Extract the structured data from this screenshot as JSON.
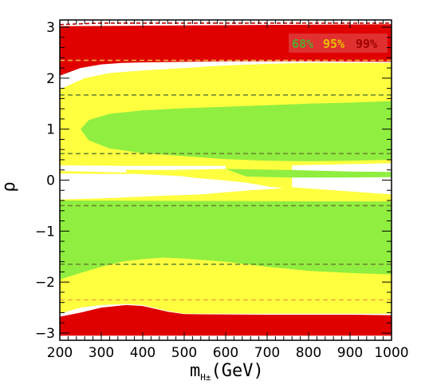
{
  "chart_data": {
    "type": "area",
    "xlabel": "m",
    "xlabel_subscript": "H±",
    "xlabel_unit": "(GeV)",
    "ylabel": "ρ",
    "xlim": [
      200,
      1000
    ],
    "ylim": [
      -3.14159,
      3.14159
    ],
    "xticks": [
      200,
      300,
      400,
      500,
      600,
      700,
      800,
      900,
      1000
    ],
    "yticks": [
      -3,
      -2,
      -1,
      0,
      1,
      2,
      3
    ],
    "legend": [
      {
        "label": "68%",
        "color": "#55a832"
      },
      {
        "label": "95%",
        "color": "#e8c000"
      },
      {
        "label": "99%",
        "color": "#a00000"
      }
    ],
    "legend_background": "#e03030",
    "colors": {
      "red": "#e00000",
      "yellow": "#ffff40",
      "green": "#90ee40",
      "white": "#ffffff",
      "dashed_green": "#6a8a30",
      "dashed_orange": "#f0b040",
      "dashed_red": "#c00000"
    },
    "regions": [
      {
        "level": "99%",
        "color": "red",
        "polygon": [
          [
            200,
            2.05
          ],
          [
            250,
            2.2
          ],
          [
            300,
            2.27
          ],
          [
            350,
            2.3
          ],
          [
            400,
            2.31
          ],
          [
            500,
            2.32
          ],
          [
            600,
            2.33
          ],
          [
            800,
            2.33
          ],
          [
            1000,
            2.32
          ],
          [
            1000,
            3.06
          ],
          [
            200,
            3.02
          ]
        ]
      },
      {
        "level": "99%",
        "color": "red",
        "polygon": [
          [
            200,
            -3.05
          ],
          [
            1000,
            -3.05
          ],
          [
            1000,
            -2.65
          ],
          [
            900,
            -2.64
          ],
          [
            700,
            -2.64
          ],
          [
            500,
            -2.63
          ],
          [
            460,
            -2.58
          ],
          [
            400,
            -2.47
          ],
          [
            360,
            -2.45
          ],
          [
            300,
            -2.5
          ],
          [
            250,
            -2.6
          ],
          [
            200,
            -2.68
          ]
        ]
      },
      {
        "level": "95%",
        "color": "yellow",
        "polygon": [
          [
            200,
            1.78
          ],
          [
            260,
            2.0
          ],
          [
            320,
            2.1
          ],
          [
            400,
            2.15
          ],
          [
            500,
            2.2
          ],
          [
            600,
            2.25
          ],
          [
            700,
            2.28
          ],
          [
            800,
            2.3
          ],
          [
            1000,
            2.3
          ],
          [
            1000,
            0.33
          ],
          [
            760,
            0.29
          ],
          [
            760,
            -0.14
          ],
          [
            1000,
            -0.28
          ],
          [
            1000,
            -2.62
          ],
          [
            500,
            -2.62
          ],
          [
            450,
            -2.55
          ],
          [
            400,
            -2.45
          ],
          [
            360,
            -2.43
          ],
          [
            300,
            -2.45
          ],
          [
            250,
            -2.5
          ],
          [
            200,
            -2.62
          ],
          [
            200,
            -0.38
          ],
          [
            330,
            -0.35
          ],
          [
            440,
            -0.31
          ],
          [
            540,
            -0.28
          ],
          [
            600,
            -0.24
          ],
          [
            660,
            -0.2
          ],
          [
            700,
            -0.18
          ],
          [
            740,
            -0.16
          ],
          [
            700,
            -0.12
          ],
          [
            650,
            -0.05
          ],
          [
            590,
            0.0
          ],
          [
            530,
            0.04
          ],
          [
            490,
            0.08
          ],
          [
            440,
            0.1
          ],
          [
            380,
            0.12
          ],
          [
            300,
            0.12
          ],
          [
            200,
            0.13
          ],
          [
            200,
            0.18
          ],
          [
            300,
            0.17
          ],
          [
            360,
            0.15
          ],
          [
            360,
            0.28
          ],
          [
            200,
            0.29
          ]
        ]
      },
      {
        "level": "68%",
        "color": "green",
        "polygon": [
          [
            250,
            1.0
          ],
          [
            270,
            1.18
          ],
          [
            320,
            1.3
          ],
          [
            400,
            1.37
          ],
          [
            500,
            1.41
          ],
          [
            600,
            1.44
          ],
          [
            700,
            1.47
          ],
          [
            800,
            1.5
          ],
          [
            900,
            1.52
          ],
          [
            1000,
            1.55
          ],
          [
            1000,
            0.4
          ],
          [
            900,
            0.38
          ],
          [
            800,
            0.37
          ],
          [
            700,
            0.38
          ],
          [
            600,
            0.41
          ],
          [
            500,
            0.47
          ],
          [
            400,
            0.53
          ],
          [
            320,
            0.62
          ],
          [
            270,
            0.78
          ]
        ]
      },
      {
        "level": "68%",
        "color": "green",
        "polygon": [
          [
            600,
            0.22
          ],
          [
            750,
            0.2
          ],
          [
            900,
            0.17
          ],
          [
            1000,
            0.16
          ],
          [
            1000,
            0.06
          ],
          [
            900,
            0.05
          ],
          [
            750,
            0.05
          ],
          [
            650,
            0.07
          ]
        ]
      },
      {
        "level": "68%",
        "color": "green",
        "polygon": [
          [
            200,
            -0.4
          ],
          [
            1000,
            -0.42
          ],
          [
            1000,
            -1.85
          ],
          [
            900,
            -1.82
          ],
          [
            800,
            -1.78
          ],
          [
            700,
            -1.7
          ],
          [
            600,
            -1.6
          ],
          [
            500,
            -1.54
          ],
          [
            450,
            -1.52
          ],
          [
            400,
            -1.55
          ],
          [
            350,
            -1.6
          ],
          [
            300,
            -1.7
          ],
          [
            250,
            -1.82
          ],
          [
            200,
            -1.95
          ]
        ]
      },
      {
        "level": "excluded",
        "color": "white",
        "polygon": [
          [
            200,
            -0.22
          ],
          [
            290,
            -0.19
          ],
          [
            400,
            -0.15
          ],
          [
            480,
            -0.1
          ],
          [
            530,
            -0.05
          ],
          [
            560,
            -0.01
          ],
          [
            540,
            0.02
          ],
          [
            490,
            0.03
          ],
          [
            400,
            0.04
          ],
          [
            300,
            0.04
          ],
          [
            220,
            0.03
          ],
          [
            200,
            0.02
          ]
        ]
      },
      {
        "level": "excluded",
        "color": "white",
        "polygon": [
          [
            200,
            0.22
          ],
          [
            330,
            0.21
          ],
          [
            400,
            0.2
          ],
          [
            470,
            0.2
          ],
          [
            540,
            0.21
          ],
          [
            600,
            0.22
          ],
          [
            600,
            0.28
          ],
          [
            360,
            0.28
          ],
          [
            360,
            0.15
          ],
          [
            200,
            0.18
          ]
        ]
      }
    ],
    "dashed_lines": [
      {
        "y": 2.35,
        "color": "dashed_orange"
      },
      {
        "y": 1.67,
        "color": "dashed_green"
      },
      {
        "y": 0.52,
        "color": "dashed_green"
      },
      {
        "y": -0.5,
        "color": "dashed_green"
      },
      {
        "y": -1.65,
        "color": "dashed_green"
      },
      {
        "y": -2.35,
        "color": "dashed_orange"
      }
    ],
    "dashed_boundary": [
      [
        200,
        3.05
      ],
      [
        260,
        3.07
      ],
      [
        300,
        3.08
      ],
      [
        400,
        3.08
      ],
      [
        500,
        3.08
      ],
      [
        1000,
        3.08
      ]
    ]
  }
}
